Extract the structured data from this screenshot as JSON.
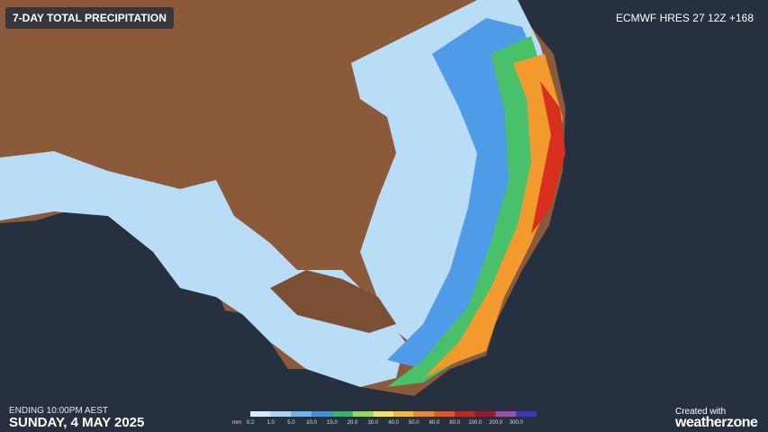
{
  "header": {
    "title": "7-DAY TOTAL PRECIPITATION",
    "model": "ECMWF HRES 27 12Z +168"
  },
  "footer": {
    "ending": "ENDING 10:00PM AEST",
    "date": "SUNDAY, 4 MAY 2025",
    "brand_line1": "Created with",
    "brand_line2": "weatherzone"
  },
  "legend": {
    "unit": "mm",
    "items": [
      {
        "label": "0.2",
        "color": "#d8ecfb"
      },
      {
        "label": "1.0",
        "color": "#a9d6f7"
      },
      {
        "label": "5.0",
        "color": "#6fb4ef"
      },
      {
        "label": "10.0",
        "color": "#3f8fe3"
      },
      {
        "label": "15.0",
        "color": "#33b56a"
      },
      {
        "label": "20.0",
        "color": "#8ddc5a"
      },
      {
        "label": "30.0",
        "color": "#f2e55c"
      },
      {
        "label": "40.0",
        "color": "#f7b73a"
      },
      {
        "label": "50.0",
        "color": "#f2862b"
      },
      {
        "label": "60.0",
        "color": "#e8541e"
      },
      {
        "label": "80.0",
        "color": "#c9231d"
      },
      {
        "label": "100.0",
        "color": "#a0162f"
      },
      {
        "label": "200.0",
        "color": "#9b4fa6"
      },
      {
        "label": "300.0",
        "color": "#3a36c8"
      }
    ]
  }
}
